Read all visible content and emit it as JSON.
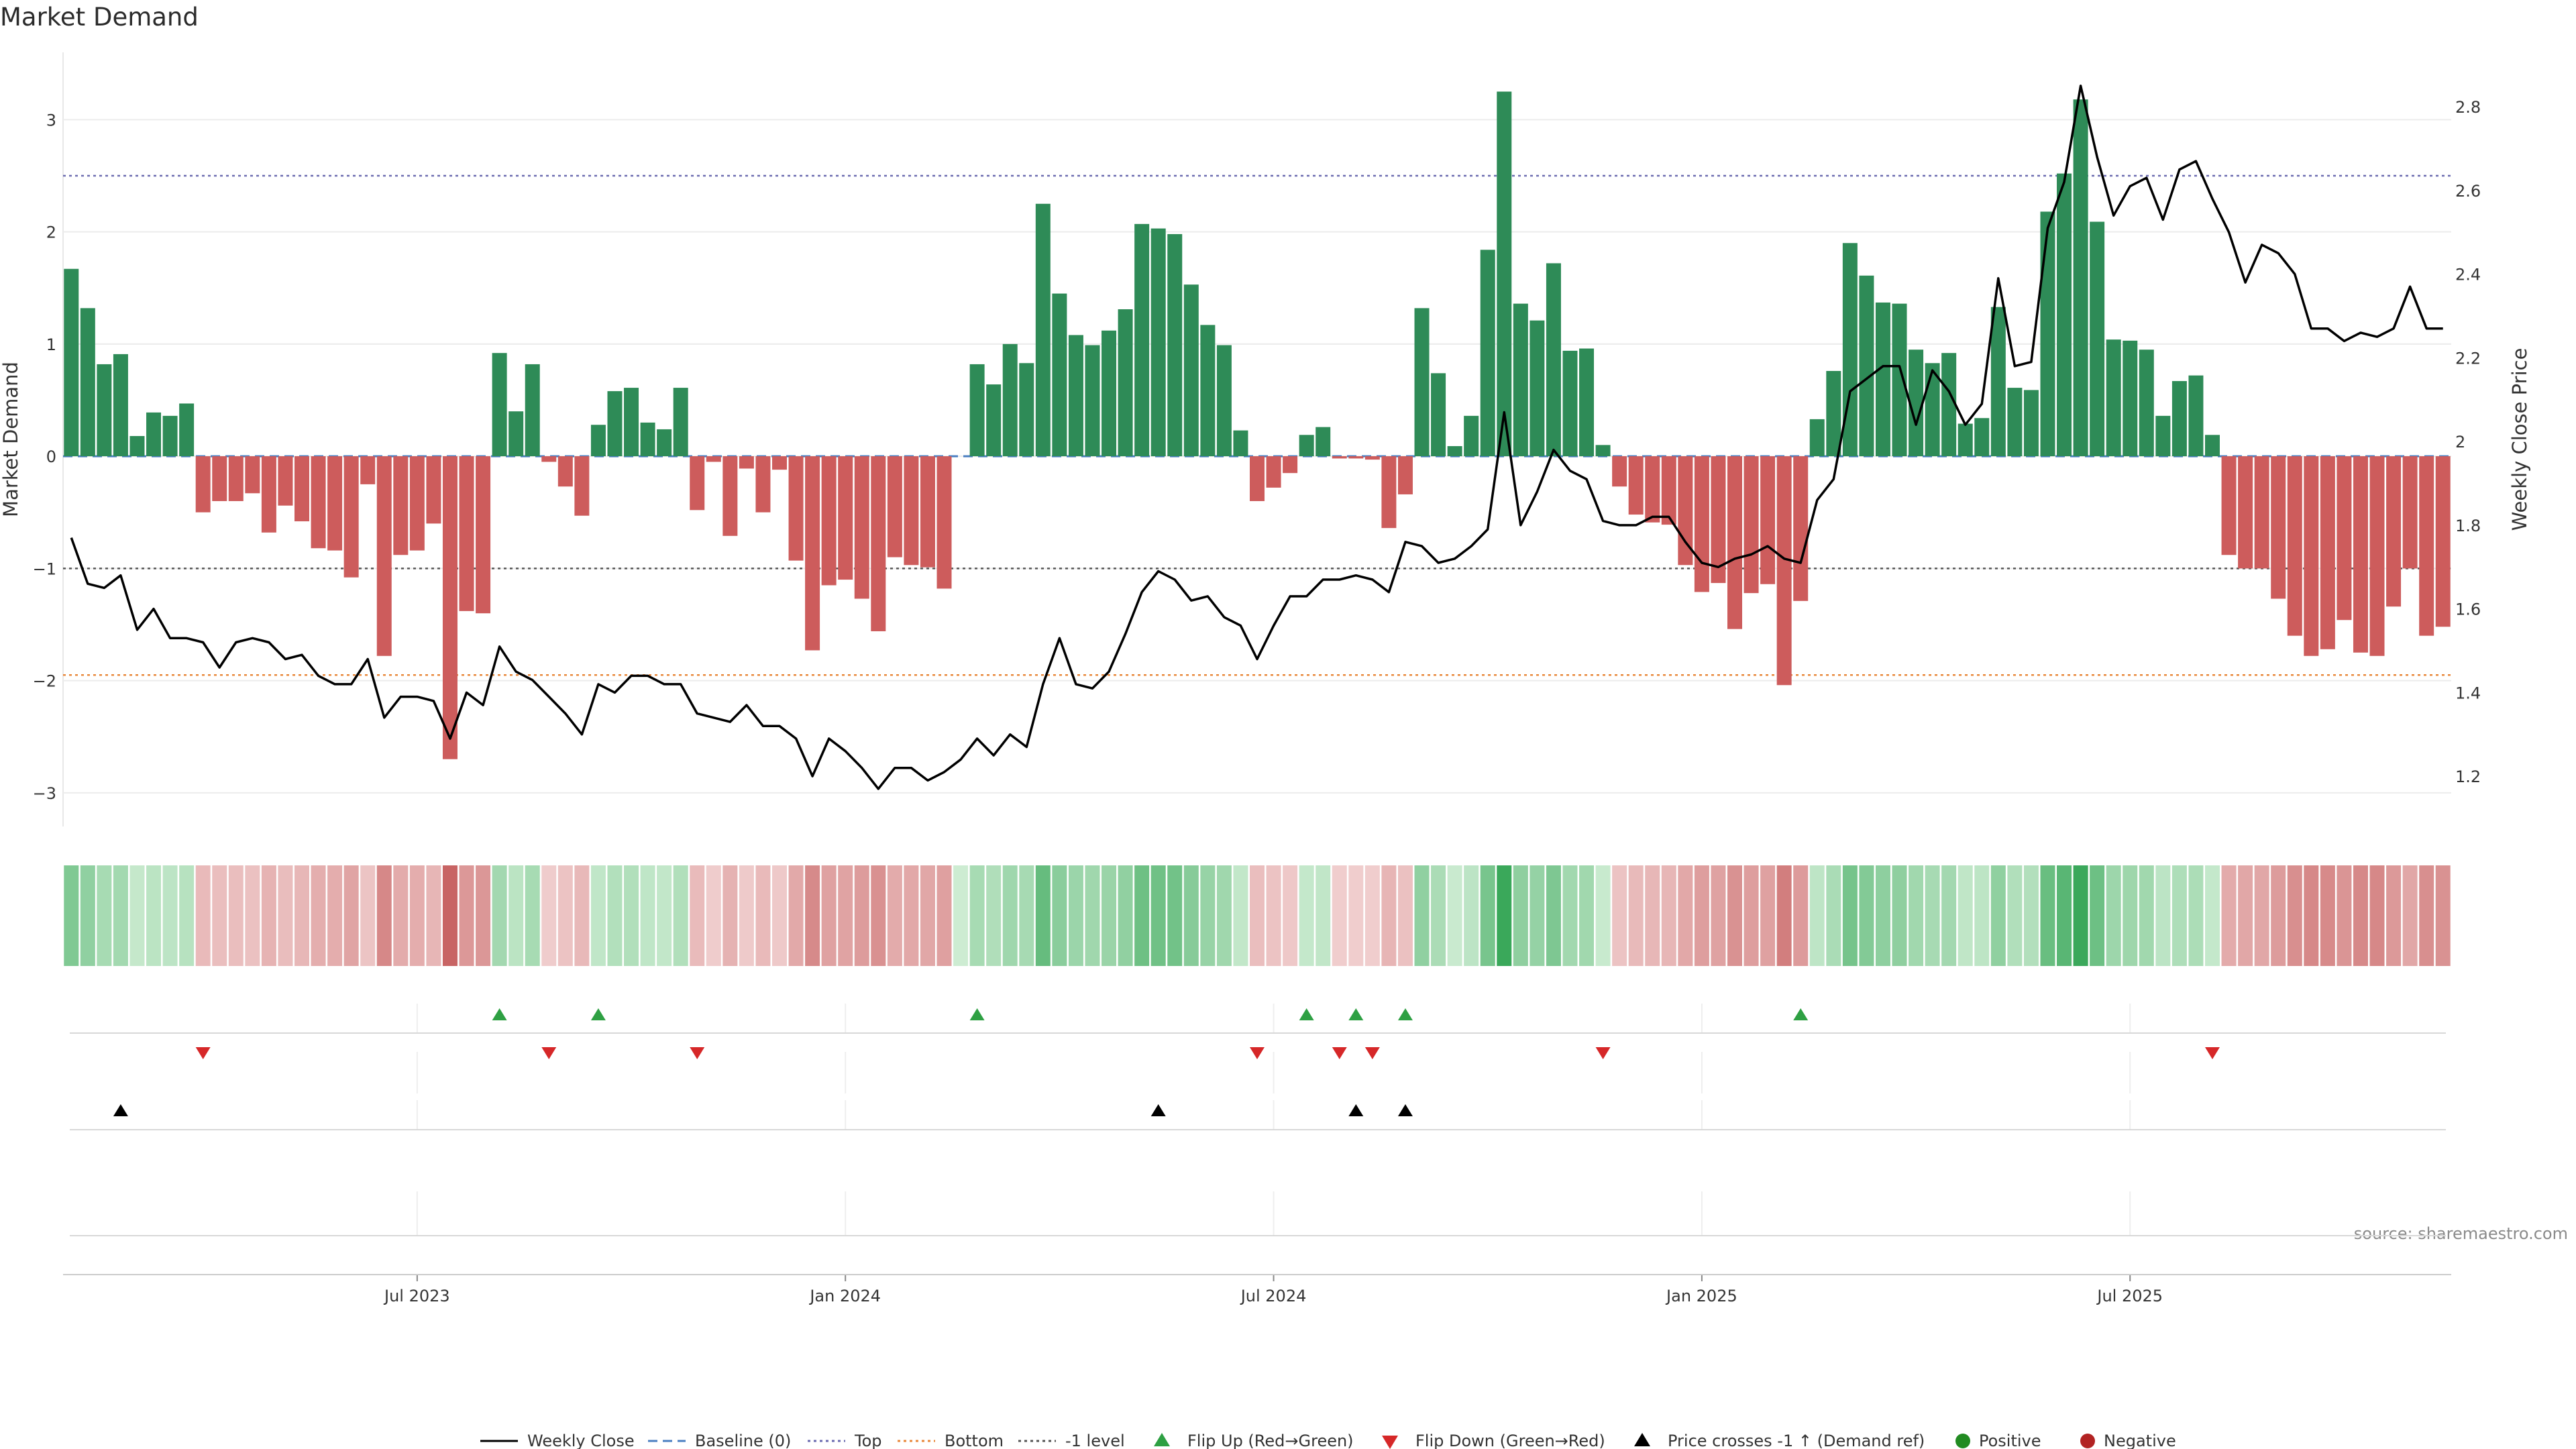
{
  "chart_data": {
    "type": "bar",
    "title": "Market Demand",
    "ylabel": "Market Demand",
    "y2label": "Weekly Close Price",
    "ylim": [
      -3.3,
      3.6
    ],
    "y2lim": [
      1.08,
      2.93
    ],
    "yticks": [
      3,
      2,
      1,
      0,
      -1,
      -2,
      -3
    ],
    "ytick_labels": [
      "3",
      "2",
      "1",
      "0",
      "−1",
      "−2",
      "−3"
    ],
    "y2ticks": [
      2.8,
      2.6,
      2.4,
      2.2,
      2.0,
      1.8,
      1.6,
      1.4,
      1.2
    ],
    "y2tick_labels": [
      "2.8",
      "2.6",
      "2.4",
      "2.2",
      "2",
      "1.8",
      "1.6",
      "1.4",
      "1.2"
    ],
    "xticks": [
      {
        "label": "Jul 2023",
        "week": 21
      },
      {
        "label": "Jan 2024",
        "week": 47
      },
      {
        "label": "Jul 2024",
        "week": 73
      },
      {
        "label": "Jan 2025",
        "week": 99
      },
      {
        "label": "Jul 2025",
        "week": 125
      }
    ],
    "reference_lines": [
      {
        "name": "Top",
        "value": 2.5,
        "color": "#6b6bb0",
        "dash": "4,5"
      },
      {
        "name": "-1 level",
        "value": -1,
        "color": "#555555",
        "dash": "4,5"
      },
      {
        "name": "Bottom",
        "value": -1.95,
        "color": "#e8893c",
        "dash": "4,5"
      }
    ],
    "demand": [
      1.67,
      1.32,
      0.82,
      0.91,
      0.18,
      0.39,
      0.36,
      0.47,
      -0.5,
      -0.4,
      -0.4,
      -0.33,
      -0.68,
      -0.44,
      -0.58,
      -0.82,
      -0.84,
      -1.08,
      -0.25,
      -1.78,
      -0.88,
      -0.84,
      -0.6,
      -2.7,
      -1.38,
      -1.4,
      0.92,
      0.4,
      0.82,
      -0.05,
      -0.27,
      -0.53,
      0.28,
      0.58,
      0.61,
      0.3,
      0.24,
      0.61,
      -0.48,
      -0.05,
      -0.71,
      -0.11,
      -0.5,
      -0.12,
      -0.93,
      -1.73,
      -1.15,
      -1.1,
      -1.27,
      -1.56,
      -0.9,
      -0.97,
      -0.99,
      -1.18,
      0,
      0.82,
      0.64,
      1.0,
      0.83,
      2.25,
      1.45,
      1.08,
      0.99,
      1.12,
      1.31,
      2.07,
      2.03,
      1.98,
      1.53,
      1.17,
      0.99,
      0.23,
      -0.4,
      -0.28,
      -0.15,
      0.19,
      0.26,
      -0.02,
      -0.02,
      -0.03,
      -0.64,
      -0.34,
      1.32,
      0.74,
      0.09,
      0.36,
      1.84,
      3.25,
      1.36,
      1.21,
      1.72,
      0.94,
      0.96,
      0.1,
      -0.27,
      -0.52,
      -0.59,
      -0.61,
      -0.97,
      -1.21,
      -1.13,
      -1.54,
      -1.22,
      -1.14,
      -2.04,
      -1.29,
      0.33,
      0.76,
      1.9,
      1.61,
      1.37,
      1.36,
      0.95,
      0.83,
      0.92,
      0.29,
      0.34,
      1.33,
      0.61,
      0.59,
      2.18,
      2.52,
      3.18,
      2.09,
      1.04,
      1.03,
      0.95,
      0.36,
      0.67,
      0.72,
      0.19,
      -0.88,
      -1.0,
      -1.0,
      -1.27,
      -1.6,
      -1.78,
      -1.72,
      -1.46,
      -1.75,
      -1.78,
      -1.34,
      -1.0,
      -1.6,
      -1.52
    ],
    "weekly_close": [
      1.77,
      1.66,
      1.65,
      1.68,
      1.55,
      1.6,
      1.53,
      1.53,
      1.52,
      1.46,
      1.52,
      1.53,
      1.52,
      1.48,
      1.49,
      1.44,
      1.42,
      1.42,
      1.48,
      1.34,
      1.39,
      1.39,
      1.38,
      1.29,
      1.4,
      1.37,
      1.51,
      1.45,
      1.43,
      1.39,
      1.35,
      1.3,
      1.42,
      1.4,
      1.44,
      1.44,
      1.42,
      1.42,
      1.35,
      1.34,
      1.33,
      1.37,
      1.32,
      1.32,
      1.29,
      1.2,
      1.29,
      1.26,
      1.22,
      1.17,
      1.22,
      1.22,
      1.19,
      1.21,
      1.24,
      1.29,
      1.25,
      1.3,
      1.27,
      1.42,
      1.53,
      1.42,
      1.41,
      1.45,
      1.54,
      1.64,
      1.69,
      1.67,
      1.62,
      1.63,
      1.58,
      1.56,
      1.48,
      1.56,
      1.63,
      1.63,
      1.67,
      1.67,
      1.68,
      1.67,
      1.64,
      1.76,
      1.75,
      1.71,
      1.72,
      1.75,
      1.79,
      2.07,
      1.8,
      1.88,
      1.98,
      1.93,
      1.91,
      1.81,
      1.8,
      1.8,
      1.82,
      1.82,
      1.76,
      1.71,
      1.7,
      1.72,
      1.73,
      1.75,
      1.72,
      1.71,
      1.86,
      1.91,
      2.12,
      2.15,
      2.18,
      2.18,
      2.04,
      2.17,
      2.12,
      2.04,
      2.09,
      2.39,
      2.18,
      2.19,
      2.51,
      2.62,
      2.85,
      2.68,
      2.54,
      2.61,
      2.63,
      2.53,
      2.65,
      2.67,
      2.58,
      2.5,
      2.38,
      2.47,
      2.45,
      2.4,
      2.27,
      2.27,
      2.24,
      2.26,
      2.25,
      2.27,
      2.37,
      2.27,
      2.27
    ],
    "flip_up_weeks": [
      26,
      32,
      55,
      75,
      78,
      81,
      105
    ],
    "flip_down_weeks": [
      8,
      29,
      38,
      72,
      77,
      79,
      93,
      130
    ],
    "price_cross_weeks": [
      3,
      66,
      78,
      81
    ],
    "colors": {
      "positive_bar": "#2e8b57",
      "negative_bar": "#cd5c5c",
      "price_line": "#000000",
      "baseline": "#4a7fc1",
      "flip_up": "#2ea043",
      "flip_down": "#d62728",
      "price_cross": "#000000",
      "positive_dot": "#228b22",
      "negative_dot": "#b22222"
    }
  },
  "legend": {
    "weekly_close": "Weekly Close",
    "baseline": "Baseline (0)",
    "top": "Top",
    "bottom": "Bottom",
    "minus1": "-1 level",
    "flip_up": "Flip Up (Red→Green)",
    "flip_down": "Flip Down (Green→Red)",
    "price_cross": "Price crosses -1 ↑ (Demand ref)",
    "positive": "Positive",
    "negative": "Negative"
  },
  "source": "source: sharemaestro.com"
}
